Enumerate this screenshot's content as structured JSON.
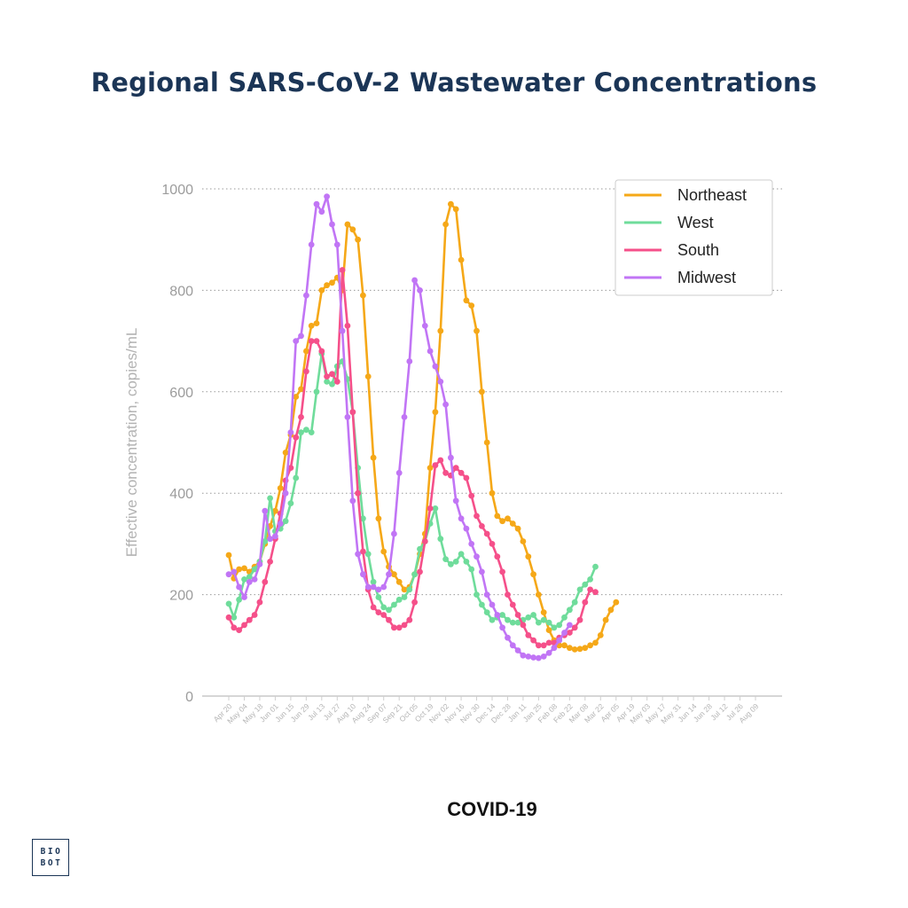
{
  "title": "Regional SARS-CoV-2 Wastewater Concentrations",
  "subtitle": "COVID-19",
  "logo": {
    "line1": "BIO",
    "line2": "BOT"
  },
  "chart_data": {
    "type": "line",
    "title": "Regional SARS-CoV-2 Wastewater Concentrations",
    "xlabel": "",
    "ylabel": "Effective concentration, copies/mL",
    "ylim": [
      0,
      1000
    ],
    "yticks": [
      0,
      200,
      400,
      600,
      800,
      1000
    ],
    "grid": true,
    "legend_position": "top-right",
    "x_tick_labels": [
      "Apr 20",
      "May 04",
      "May 18",
      "Jun 01",
      "Jun 15",
      "Jun 29",
      "Jul 13",
      "Jul 27",
      "Aug 10",
      "Aug 24",
      "Sep 07",
      "Sep 21",
      "Oct 05",
      "Oct 19",
      "Nov 02",
      "Nov 16",
      "Nov 30",
      "Dec 14",
      "Dec 28",
      "Jan 11",
      "Jan 25",
      "Feb 08",
      "Feb 22",
      "Mar 08",
      "Mar 22",
      "Apr 05",
      "Apr 19",
      "May 03",
      "May 17",
      "May 31",
      "Jun 14",
      "Jun 28",
      "Jul 12",
      "Jul 26",
      "Aug 09"
    ],
    "x_points_per_tick": 3,
    "series": [
      {
        "name": "Northeast",
        "color": "#f5a818",
        "values": [
          278,
          232,
          250,
          252,
          245,
          255,
          265,
          300,
          335,
          365,
          410,
          480,
          515,
          590,
          605,
          680,
          730,
          735,
          800,
          810,
          815,
          825,
          800,
          930,
          920,
          900,
          790,
          630,
          470,
          350,
          285,
          255,
          240,
          225,
          210,
          215,
          240,
          280,
          320,
          450,
          560,
          720,
          930,
          970,
          960,
          860,
          780,
          770,
          720,
          600,
          500,
          400,
          355,
          345,
          350,
          340,
          330,
          305,
          275,
          240,
          200,
          165,
          130,
          110,
          100,
          100,
          95,
          92,
          93,
          95,
          100,
          105,
          120,
          150,
          170,
          185
        ]
      },
      {
        "name": "West",
        "color": "#6fdc9b",
        "values": [
          182,
          155,
          190,
          230,
          235,
          250,
          265,
          305,
          390,
          325,
          330,
          345,
          380,
          430,
          520,
          525,
          520,
          600,
          675,
          620,
          615,
          650,
          660,
          625,
          560,
          450,
          350,
          280,
          225,
          195,
          175,
          170,
          180,
          190,
          195,
          210,
          240,
          290,
          305,
          340,
          370,
          310,
          270,
          260,
          265,
          280,
          265,
          250,
          200,
          180,
          165,
          150,
          155,
          160,
          150,
          145,
          145,
          150,
          155,
          160,
          145,
          150,
          145,
          135,
          140,
          155,
          170,
          185,
          210,
          220,
          230,
          255
        ]
      },
      {
        "name": "South",
        "color": "#f5508a",
        "values": [
          155,
          135,
          130,
          140,
          150,
          160,
          185,
          225,
          265,
          310,
          360,
          425,
          450,
          510,
          550,
          640,
          700,
          700,
          680,
          630,
          635,
          620,
          840,
          730,
          560,
          400,
          285,
          210,
          175,
          165,
          160,
          150,
          135,
          135,
          140,
          150,
          185,
          245,
          305,
          370,
          455,
          465,
          440,
          435,
          450,
          440,
          430,
          395,
          355,
          335,
          320,
          300,
          275,
          245,
          200,
          180,
          160,
          140,
          120,
          110,
          100,
          100,
          105,
          105,
          115,
          120,
          125,
          135,
          150,
          185,
          210,
          205
        ]
      },
      {
        "name": "Midwest",
        "color": "#c175f5",
        "values": [
          240,
          245,
          215,
          195,
          225,
          230,
          260,
          365,
          310,
          315,
          340,
          400,
          520,
          700,
          710,
          790,
          890,
          970,
          955,
          985,
          930,
          890,
          720,
          550,
          385,
          280,
          240,
          215,
          215,
          210,
          215,
          240,
          320,
          440,
          550,
          660,
          820,
          800,
          730,
          680,
          650,
          620,
          575,
          470,
          385,
          350,
          330,
          300,
          275,
          245,
          200,
          180,
          160,
          135,
          115,
          100,
          90,
          80,
          78,
          76,
          75,
          78,
          85,
          95,
          110,
          125,
          140
        ]
      }
    ]
  }
}
